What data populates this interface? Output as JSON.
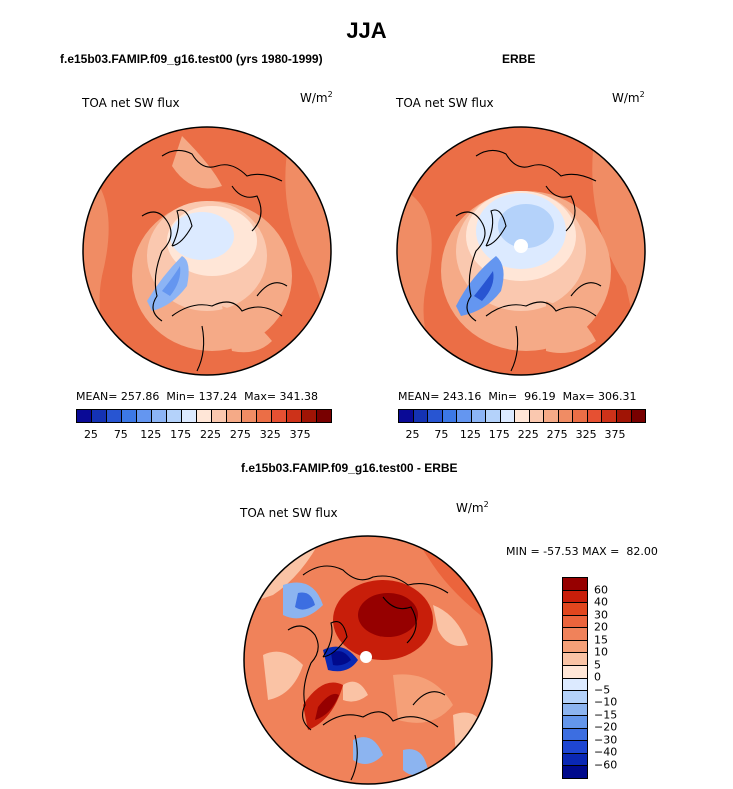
{
  "title": "JJA",
  "left_panel": {
    "subtitle": "f.e15b03.FAMIP.f09_g16.test00 (yrs 1980-1999)",
    "label": "TOA net SW flux",
    "units": "W/m",
    "units_exp": "2",
    "stats": "MEAN= 257.86  Min= 137.24  Max= 341.38",
    "mean": 257.86,
    "min": 137.24,
    "max": 341.38
  },
  "right_panel": {
    "subtitle": "ERBE",
    "label": "TOA net SW flux",
    "units": "W/m",
    "units_exp": "2",
    "stats": "MEAN= 243.16  Min=  96.19  Max= 306.31",
    "mean": 243.16,
    "min": 96.19,
    "max": 306.31
  },
  "diff_panel": {
    "subtitle": "f.e15b03.FAMIP.f09_g16.test00 - ERBE",
    "label": "TOA net SW flux",
    "units": "W/m",
    "units_exp": "2",
    "stats": "MIN = -57.53 MAX =  82.00",
    "min": -57.53,
    "max": 82.0
  },
  "abs_colorbar": {
    "colors": [
      "#0a0a96",
      "#1432b4",
      "#2855d2",
      "#3c78e6",
      "#6496f0",
      "#8cb4f5",
      "#b4d2fa",
      "#dceaff",
      "#ffe6d7",
      "#fac8af",
      "#f5aa87",
      "#f08c64",
      "#eb6e46",
      "#e65032",
      "#cd3219",
      "#a01405",
      "#780000"
    ],
    "ticks": [
      "25",
      "75",
      "125",
      "175",
      "225",
      "275",
      "325",
      "375"
    ]
  },
  "diff_colorbar": {
    "colors": [
      "#960000",
      "#c81e0a",
      "#e1461e",
      "#eb643c",
      "#f0825a",
      "#f5a078",
      "#fac3a5",
      "#ffe6d7",
      "#dceaff",
      "#b4d2fa",
      "#8cb4f0",
      "#6496eb",
      "#3c6ee1",
      "#1e46d2",
      "#0a28b4",
      "#000a8c"
    ],
    "ticks": [
      "60",
      "40",
      "30",
      "20",
      "15",
      "10",
      "5",
      "0",
      "−5",
      "−10",
      "−15",
      "−20",
      "−30",
      "−40",
      "−60"
    ]
  }
}
